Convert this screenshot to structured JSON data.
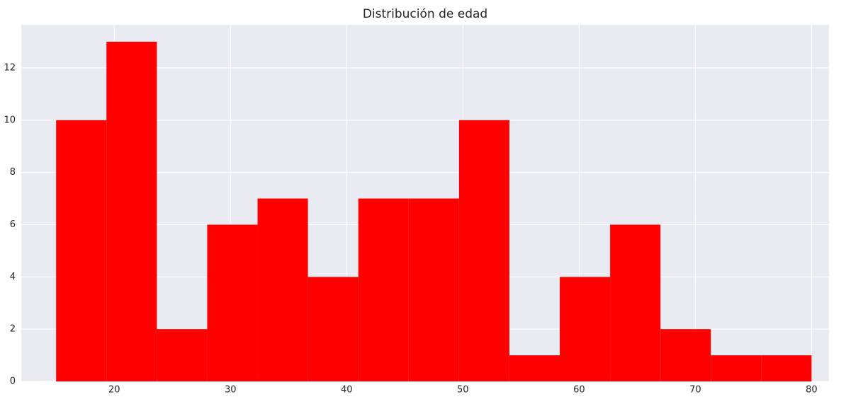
{
  "chart_data": {
    "type": "histogram",
    "title": "Distribución de edad",
    "bins": [
      15,
      19.333,
      23.667,
      28,
      32.333,
      36.667,
      41,
      45.333,
      49.667,
      54,
      58.333,
      62.667,
      67,
      71.333,
      75.667,
      80
    ],
    "values": [
      10,
      13,
      2,
      6,
      7,
      4,
      7,
      7,
      10,
      1,
      4,
      6,
      2,
      1,
      1
    ],
    "color": "#ff0000",
    "xlim": [
      12,
      81.5
    ],
    "xticks": [
      20,
      30,
      40,
      50,
      60,
      70,
      80
    ],
    "ylim": [
      0,
      13.65
    ],
    "yticks": [
      0,
      2,
      4,
      6,
      8,
      10,
      12
    ],
    "grid": true
  }
}
